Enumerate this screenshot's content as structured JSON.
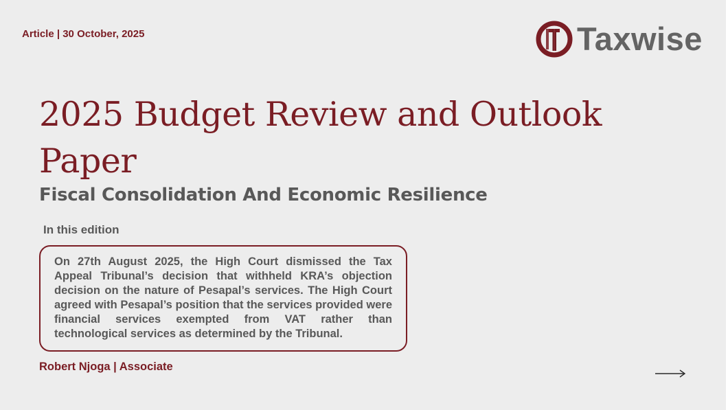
{
  "header": {
    "meta": "Article | 30 October, 2025",
    "logo_text": "Taxwise"
  },
  "main": {
    "title": "2025 Budget Review and Outlook Paper",
    "subtitle": "Fiscal Consolidation And Economic Resilience",
    "edition_label": "In this edition",
    "summary": "On 27th August 2025, the High Court dismissed the Tax Appeal Tribunal’s decision that withheld KRA’s objection decision on the nature of Pesapal’s services. The High Court agreed with Pesapal’s position that the services provided were financial services exempted from VAT rather than technological services as determined by the Tribunal.",
    "author": "Robert Njoga | Associate"
  },
  "icons": {
    "logo": "taxwise-logo-icon",
    "next": "arrow-right-icon"
  },
  "colors": {
    "accent": "#7a1d24",
    "text_gray": "#585858",
    "background": "#ededed"
  }
}
